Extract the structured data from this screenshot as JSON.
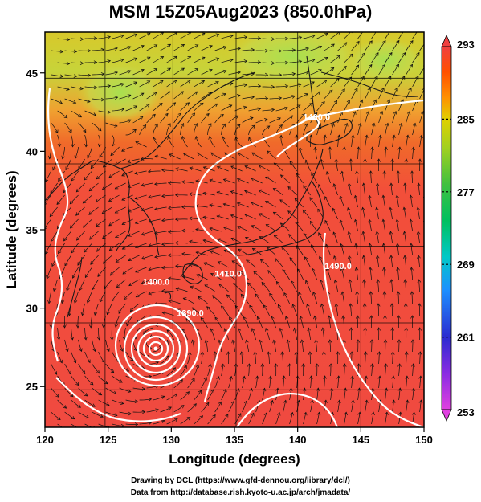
{
  "title": "MSM 15Z05Aug2023 (850.0hPa)",
  "x_axis": {
    "label": "Longitude (degrees)",
    "ticks": [
      "120",
      "125",
      "130",
      "135",
      "140",
      "145",
      "150"
    ],
    "range": [
      120,
      150
    ]
  },
  "y_axis": {
    "label": "Latitude  (degrees)",
    "ticks": [
      "25",
      "30",
      "35",
      "40",
      "45"
    ],
    "range": [
      22.4,
      47.6
    ]
  },
  "colorbar": {
    "ticks": [
      "293",
      "285",
      "277",
      "269",
      "261",
      "253"
    ],
    "range": [
      253,
      293
    ],
    "colors": [
      "#e040e0",
      "#8a2be2",
      "#2b2bd0",
      "#1e90ff",
      "#00c8c8",
      "#00c060",
      "#40c040",
      "#a0d020",
      "#e0d000",
      "#ff9000",
      "#ff5000",
      "#f04040"
    ]
  },
  "contour_labels": [
    {
      "text": "1400.0",
      "lon": 141.5,
      "lat": 42.0
    },
    {
      "text": "1400.0",
      "lon": 128.8,
      "lat": 31.5
    },
    {
      "text": "1390.0",
      "lon": 131.5,
      "lat": 29.5
    },
    {
      "text": "1410.0",
      "lon": 134.5,
      "lat": 32.0
    },
    {
      "text": "1490.0",
      "lon": 143.2,
      "lat": 32.5
    }
  ],
  "cyclone_center": {
    "lon": 128.6,
    "lat": 27.8
  },
  "credits": {
    "line1": "Drawing by DCL (https://www.gfd-dennou.org/library/dcl/)",
    "line2": "Data from http://database.rish.kyoto-u.ac.jp/arch/jmadata/"
  }
}
